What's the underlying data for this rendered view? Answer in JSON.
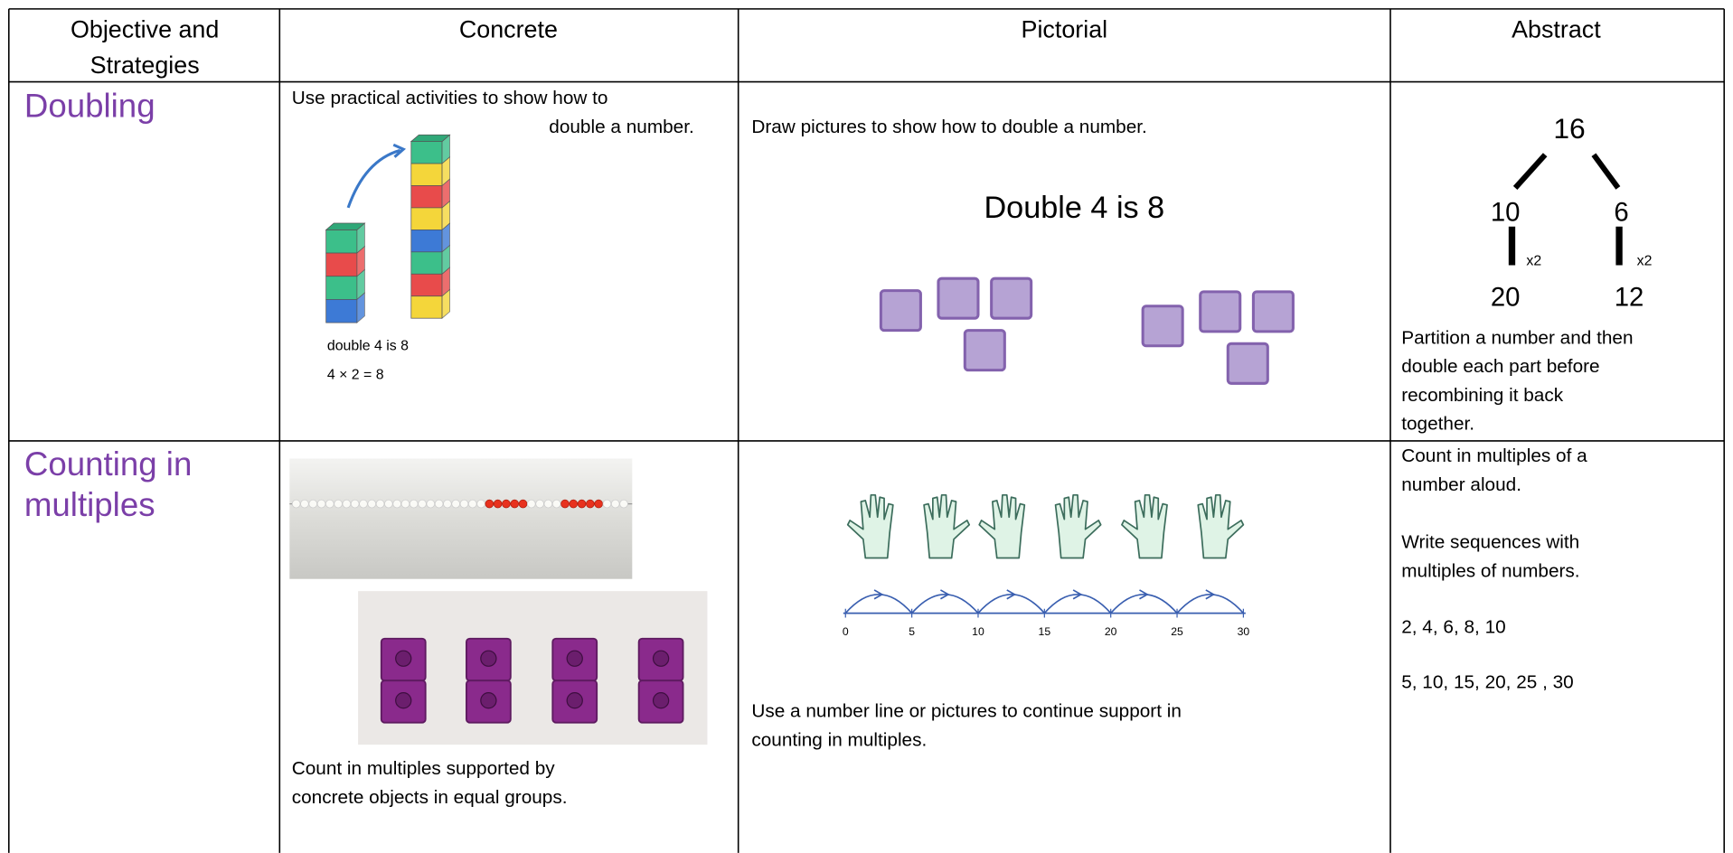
{
  "table": {
    "header": [
      [
        "Objective and",
        "Strategies"
      ],
      [
        "Concrete"
      ],
      [
        "Pictorial"
      ],
      [
        "Abstract"
      ]
    ],
    "rows": [
      {
        "objective": [
          "Doubling"
        ],
        "concrete": {
          "text": [
            "Use practical activities to show how to",
            "double a number."
          ],
          "image_labels": [
            "double 4 is 8",
            "4 × 2 = 8"
          ]
        },
        "pictorial": {
          "text": [
            "Draw pictures to show how to double a number."
          ],
          "heading": "Double 4 is 8"
        },
        "abstract": {
          "tree": {
            "whole": "16",
            "parts": [
              "10",
              "6"
            ],
            "operators": [
              "x2",
              "x2"
            ],
            "results": [
              "20",
              "12"
            ]
          },
          "text": [
            "Partition a number and then",
            "double each part before",
            "recombining it back",
            "together."
          ]
        }
      },
      {
        "objective": [
          "Counting in",
          "multiples"
        ],
        "concrete": {
          "text": [
            "Count in multiples supported by",
            "concrete objects in equal groups."
          ]
        },
        "pictorial": {
          "number_line": [
            0,
            5,
            10,
            15,
            20,
            25,
            30
          ],
          "text": [
            "Use a number line or pictures to continue support in",
            "counting in multiples."
          ]
        },
        "abstract": {
          "text": [
            "Count in multiples of a",
            "number aloud.",
            "Write sequences with",
            "multiples of numbers.",
            "2, 4, 6, 8, 10",
            "5, 10, 15, 20, 25 , 30"
          ]
        }
      }
    ]
  }
}
